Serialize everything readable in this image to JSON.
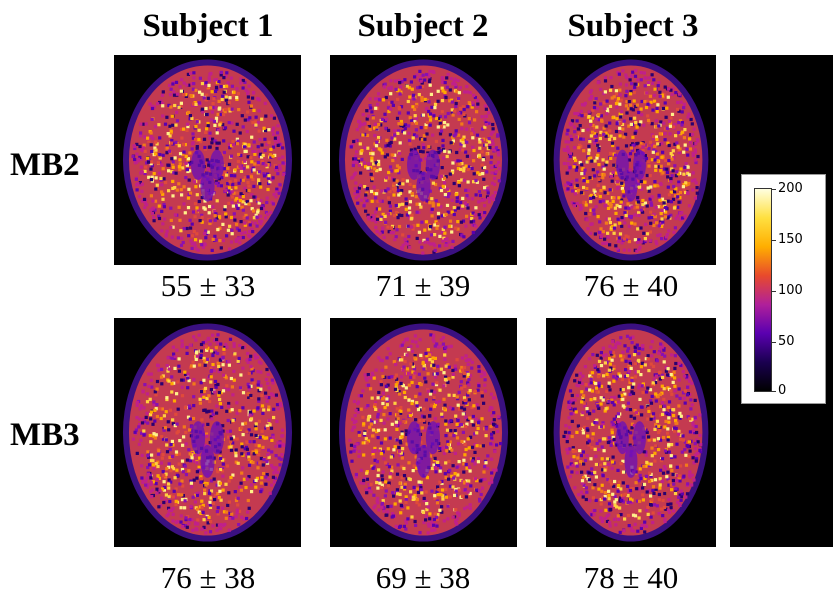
{
  "columns": [
    "Subject 1",
    "Subject 2",
    "Subject 3"
  ],
  "rows": [
    {
      "label": "MB2",
      "values": [
        "55 ± 33",
        "71 ± 39",
        "76 ± 40"
      ]
    },
    {
      "label": "MB3",
      "values": [
        "76 ± 38",
        "69 ± 38",
        "78 ± 40"
      ]
    }
  ],
  "colorbar": {
    "ticks": [
      "200",
      "150",
      "100",
      "50",
      "0"
    ],
    "colormap": [
      "#000000",
      "#1a0050",
      "#5a00b0",
      "#b0209a",
      "#e84a2c",
      "#ffae00",
      "#ffe040",
      "#ffffe0"
    ]
  }
}
